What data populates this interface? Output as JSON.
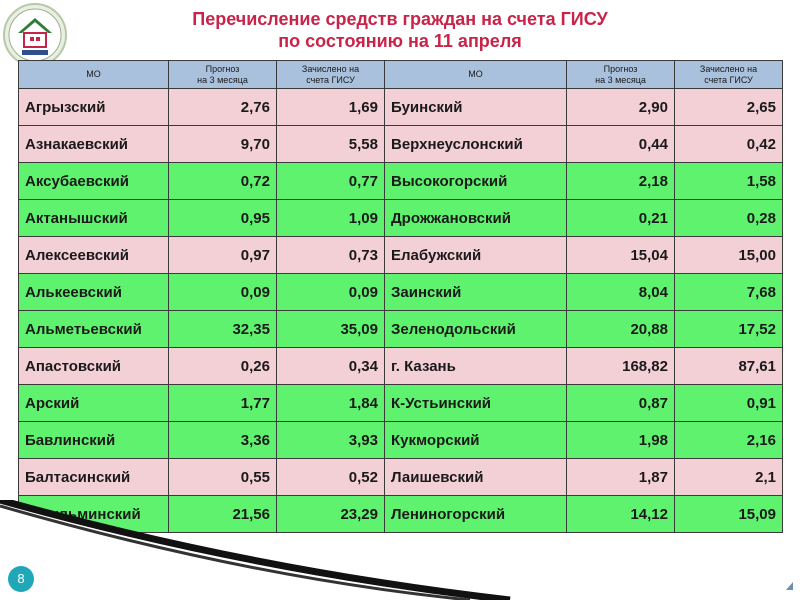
{
  "title": {
    "line1": "Перечисление средств граждан на счета ГИСУ",
    "line2": "по состоянию на 11 апреля"
  },
  "logo": {
    "label": "МСКИНУ РТ",
    "icon": "house-logo-icon"
  },
  "headers": {
    "mo_left": "МО",
    "forecast_line1": "Прогноз",
    "forecast_line2": "на 3 месяца",
    "credited_line1": "Зачислено на",
    "credited_line2": "счета ГИСУ",
    "mo_right": "МО"
  },
  "colors": {
    "pink": "#f3cfd6",
    "green": "#5ff26f",
    "header": "#a9c1dc",
    "title": "#c8244a"
  },
  "rows": [
    {
      "status": "pink",
      "left": {
        "name": "Агрызский",
        "forecast": "2,76",
        "credited": "1,69"
      },
      "right": {
        "name": "Буинский",
        "forecast": "2,90",
        "credited": "2,65"
      }
    },
    {
      "status": "pink",
      "left": {
        "name": "Азнакаевский",
        "forecast": "9,70",
        "credited": "5,58"
      },
      "right": {
        "name": "Верхнеуслонский",
        "forecast": "0,44",
        "credited": "0,42"
      }
    },
    {
      "status": "green",
      "left": {
        "name": "Аксубаевский",
        "forecast": "0,72",
        "credited": "0,77"
      },
      "right": {
        "name": "Высокогорский",
        "forecast": "2,18",
        "credited": "1,58"
      }
    },
    {
      "status": "green",
      "left": {
        "name": "Актанышский",
        "forecast": "0,95",
        "credited": "1,09"
      },
      "right": {
        "name": "Дрожжановский",
        "forecast": "0,21",
        "credited": "0,28"
      }
    },
    {
      "status": "pink",
      "left": {
        "name": "Алексеевский",
        "forecast": "0,97",
        "credited": "0,73"
      },
      "right": {
        "name": "Елабужский",
        "forecast": "15,04",
        "credited": "15,00"
      }
    },
    {
      "status": "green",
      "left": {
        "name": "Алькеевский",
        "forecast": "0,09",
        "credited": "0,09"
      },
      "right": {
        "name": "Заинский",
        "forecast": "8,04",
        "credited": "7,68"
      }
    },
    {
      "status": "green",
      "left": {
        "name": "Альметьевский",
        "forecast": "32,35",
        "credited": "35,09"
      },
      "right": {
        "name": "Зеленодольский",
        "forecast": "20,88",
        "credited": "17,52"
      }
    },
    {
      "status": "pink",
      "left": {
        "name": "Апастовский",
        "forecast": "0,26",
        "credited": "0,34"
      },
      "right": {
        "name": "г. Казань",
        "forecast": "168,82",
        "credited": "87,61"
      }
    },
    {
      "status": "green",
      "left": {
        "name": "Арский",
        "forecast": "1,77",
        "credited": "1,84"
      },
      "right": {
        "name": "К-Устьинский",
        "forecast": "0,87",
        "credited": "0,91"
      }
    },
    {
      "status": "green",
      "left": {
        "name": "Бавлинский",
        "forecast": "3,36",
        "credited": "3,93"
      },
      "right": {
        "name": "Кукморский",
        "forecast": "1,98",
        "credited": "2,16"
      }
    },
    {
      "status": "pink",
      "left": {
        "name": "Балтасинский",
        "forecast": "0,55",
        "credited": "0,52"
      },
      "right": {
        "name": "Лаишевский",
        "forecast": "1,87",
        "credited": "2,1"
      }
    },
    {
      "status": "green",
      "left": {
        "name": "Бугульминский",
        "forecast": "21,56",
        "credited": "23,29"
      },
      "right": {
        "name": "Лениногорский",
        "forecast": "14,12",
        "credited": "15,09"
      }
    }
  ],
  "page_number": "8"
}
